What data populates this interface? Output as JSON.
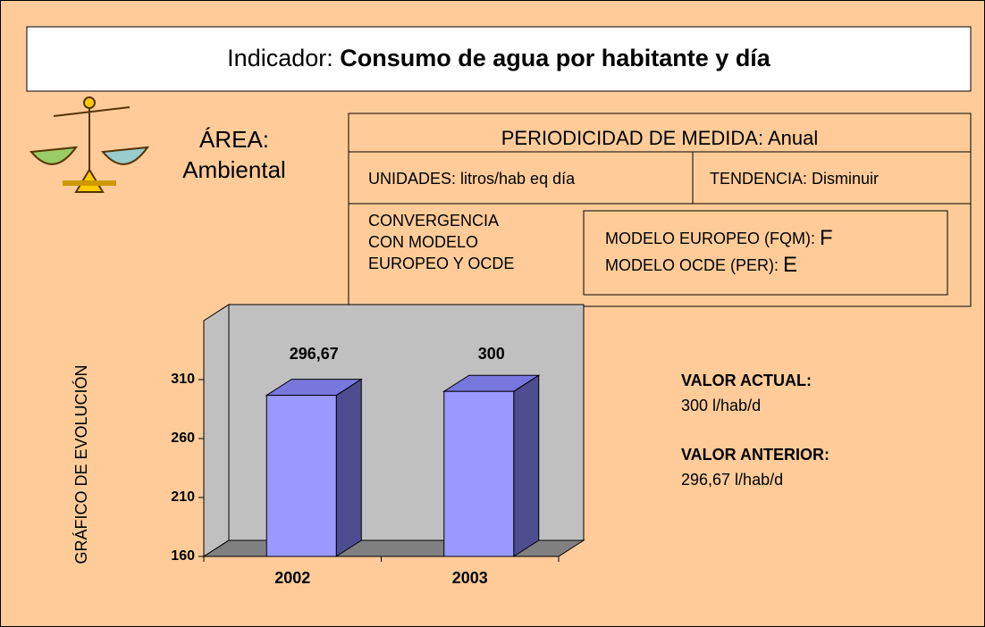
{
  "header": {
    "label": "Indicador:",
    "title": "Consumo de agua por habitante y día"
  },
  "area": {
    "label": "ÁREA:",
    "value": "Ambiental"
  },
  "info": {
    "periodicity": "PERIODICIDAD DE MEDIDA: Anual",
    "units": "UNIDADES: litros/hab eq día",
    "trend": "TENDENCIA: Disminuir",
    "convergence": [
      "CONVERGENCIA",
      "CON MODELO",
      "EUROPEO Y OCDE"
    ],
    "models": [
      {
        "label": "MODELO EUROPEO (FQM):",
        "grade": "F"
      },
      {
        "label": "MODELO OCDE (PER):",
        "grade": "E"
      }
    ]
  },
  "values_panel": {
    "current_label": "VALOR ACTUAL:",
    "current": "300 l/hab/d",
    "previous_label": "VALOR ANTERIOR:",
    "previous": "296,67 l/hab/d"
  },
  "chart_data": {
    "type": "bar",
    "y_label": "GRÁFICO DE EVOLUCIÓN",
    "categories": [
      "2002",
      "2003"
    ],
    "values": [
      296.67,
      300
    ],
    "value_labels": [
      "296,67",
      "300"
    ],
    "color": "#9999ff",
    "ylim": [
      160,
      360
    ],
    "yticks": [
      160,
      210,
      260,
      310
    ],
    "grid": false
  }
}
